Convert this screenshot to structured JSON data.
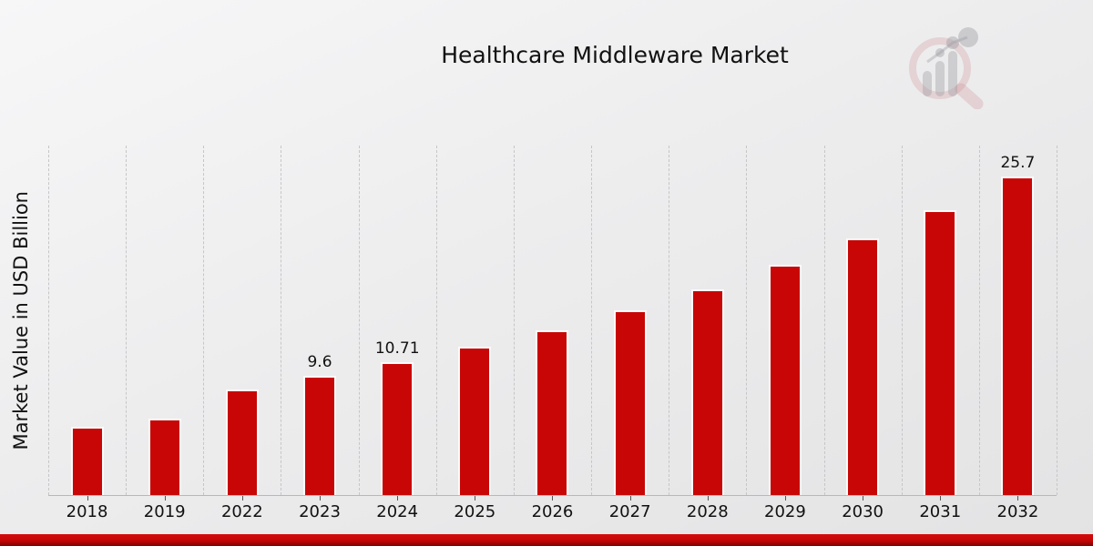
{
  "title": "Healthcare Middleware Market",
  "y_axis_label": "Market Value in USD Billion",
  "watermark_icon": "magnifier-bar-chart-logo",
  "colors": {
    "bar": "#c90606",
    "bar_edge": "#fbfbfb",
    "gridline": "#c6c6c6",
    "axis_line": "#b8b8b8",
    "text": "#111111",
    "band_top": "#d60b0b",
    "band_bottom": "#7e0303",
    "background_light": "#f7f7f8",
    "background_dark": "#e3e3e4"
  },
  "chart_data": {
    "type": "bar",
    "title": "Healthcare Middleware Market",
    "xlabel": "",
    "ylabel": "Market Value in USD Billion",
    "categories": [
      "2018",
      "2019",
      "2022",
      "2023",
      "2024",
      "2025",
      "2026",
      "2027",
      "2028",
      "2029",
      "2030",
      "2031",
      "2032"
    ],
    "values": [
      5.5,
      6.2,
      8.5,
      9.6,
      10.71,
      12.0,
      13.3,
      14.9,
      16.6,
      18.6,
      20.7,
      23.0,
      25.7
    ],
    "data_labels": [
      "",
      "",
      "",
      "9.6",
      "10.71",
      "",
      "",
      "",
      "",
      "",
      "",
      "",
      "25.7"
    ],
    "ylim": [
      0,
      28.3
    ],
    "grid": "vertical category separators, dashed",
    "legend": "none",
    "bar_color": "#c90606"
  }
}
